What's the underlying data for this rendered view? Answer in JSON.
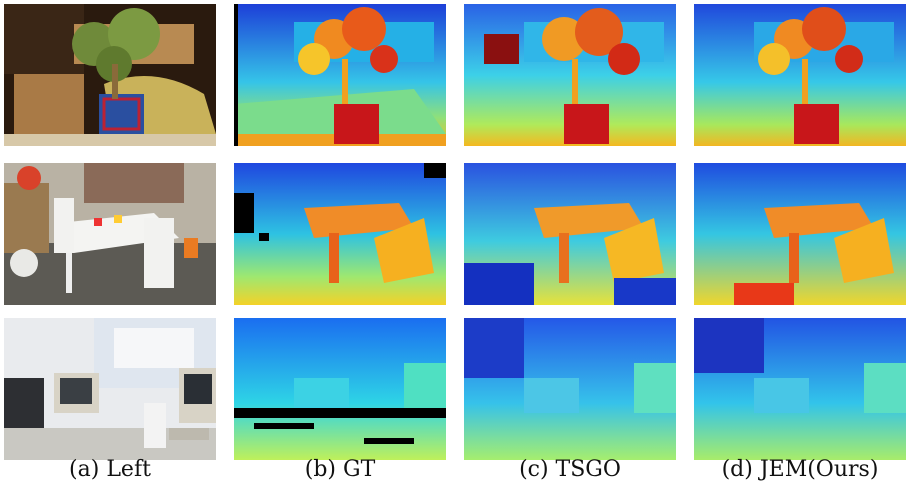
{
  "figure": {
    "captions": [
      "(a) Left",
      "(b) GT",
      "(c) TSGO",
      "(d) JEM(Ours)"
    ],
    "rows": [
      "jade-plant",
      "playroom",
      "office-computers"
    ]
  }
}
